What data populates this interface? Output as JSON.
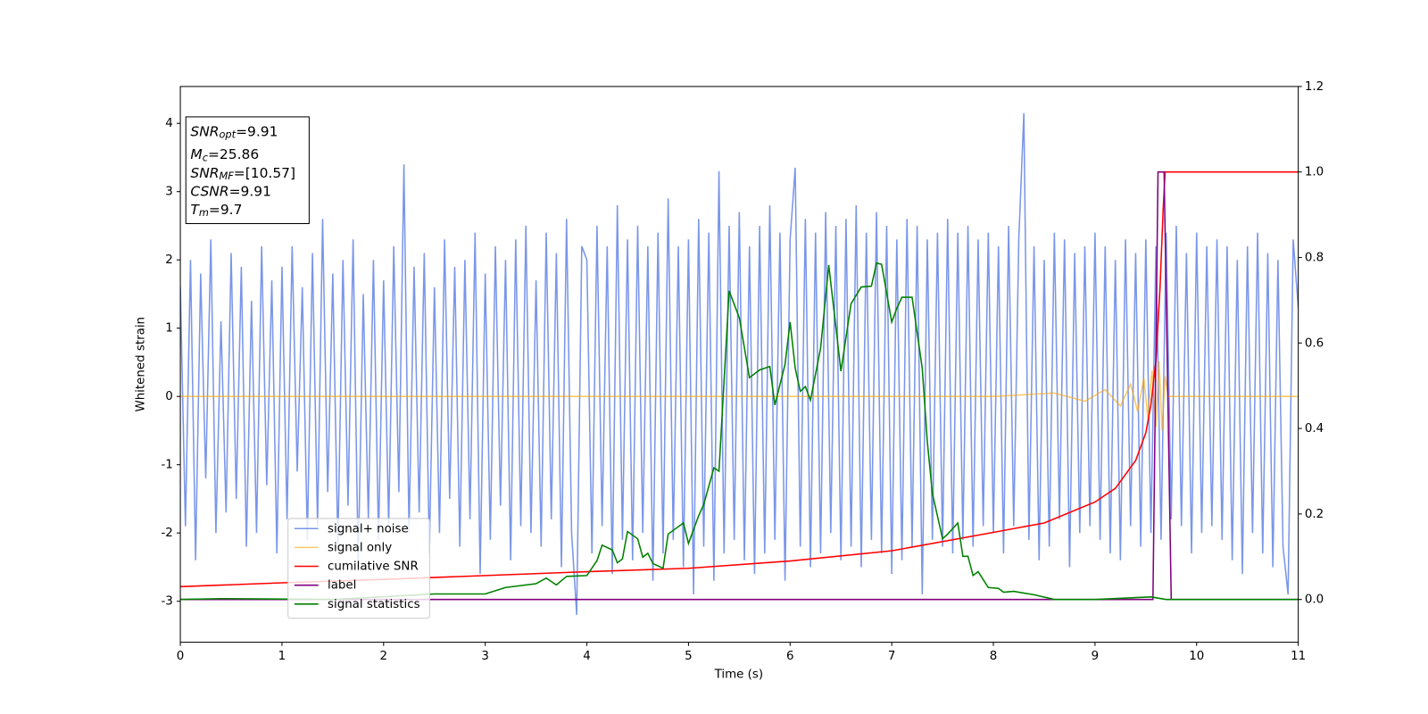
{
  "chart_data": {
    "type": "line",
    "xlabel": "Time (s)",
    "ylabel": "Whitened strain",
    "xlim": [
      0,
      11
    ],
    "xticks": [
      0,
      1,
      2,
      3,
      4,
      5,
      6,
      7,
      8,
      9,
      10,
      11
    ],
    "ylim": [
      -3.6,
      4.54
    ],
    "yticks": [
      -3,
      -2,
      -1,
      0,
      1,
      2,
      3,
      4
    ],
    "y2lim": [
      -0.1,
      1.2
    ],
    "y2ticks": [
      {
        "value": 0,
        "label": "0.0"
      },
      {
        "value": 0.2,
        "label": "0.2"
      },
      {
        "value": 0.4,
        "label": "0.4"
      },
      {
        "value": 0.6,
        "label": "0.6"
      },
      {
        "value": 0.8,
        "label": "0.8"
      },
      {
        "value": 1.0,
        "label": "1.0"
      },
      {
        "value": 1.2,
        "label": "1.2"
      }
    ],
    "legend": "lower left",
    "annotations": [
      {
        "main": "SNR",
        "sub": "opt",
        "rest": "=9.91"
      },
      {
        "main": "M",
        "sub": "c",
        "rest": "=25.86"
      },
      {
        "main": "SNR",
        "sub": "MF",
        "rest": "=[10.57]"
      },
      {
        "main": "CSNR",
        "sub": null,
        "rest": "=9.91"
      },
      {
        "main": "T",
        "sub": "m",
        "rest": "=9.7"
      }
    ],
    "series": [
      {
        "name": "signal+ noise",
        "color": "#4169e1",
        "alpha": 0.7,
        "axis": "y",
        "x": [
          0,
          0.05,
          0.1,
          0.15,
          0.2,
          0.25,
          0.3,
          0.35,
          0.4,
          0.45,
          0.5,
          0.55,
          0.6,
          0.65,
          0.7,
          0.75,
          0.8,
          0.85,
          0.9,
          0.95,
          1,
          1.05,
          1.1,
          1.15,
          1.2,
          1.25,
          1.3,
          1.35,
          1.4,
          1.45,
          1.5,
          1.55,
          1.6,
          1.65,
          1.7,
          1.75,
          1.8,
          1.85,
          1.9,
          1.95,
          2,
          2.05,
          2.1,
          2.15,
          2.2,
          2.25,
          2.3,
          2.35,
          2.4,
          2.45,
          2.5,
          2.55,
          2.6,
          2.65,
          2.7,
          2.75,
          2.8,
          2.85,
          2.9,
          2.95,
          3,
          3.05,
          3.1,
          3.15,
          3.2,
          3.25,
          3.3,
          3.35,
          3.4,
          3.45,
          3.5,
          3.55,
          3.6,
          3.65,
          3.7,
          3.75,
          3.8,
          3.85,
          3.9,
          3.95,
          4,
          4.05,
          4.1,
          4.15,
          4.2,
          4.25,
          4.3,
          4.35,
          4.4,
          4.45,
          4.5,
          4.55,
          4.6,
          4.65,
          4.7,
          4.75,
          4.8,
          4.85,
          4.9,
          4.95,
          5,
          5.05,
          5.1,
          5.15,
          5.2,
          5.25,
          5.3,
          5.35,
          5.4,
          5.45,
          5.5,
          5.55,
          5.6,
          5.65,
          5.7,
          5.75,
          5.8,
          5.85,
          5.9,
          5.95,
          6,
          6.05,
          6.1,
          6.15,
          6.2,
          6.25,
          6.3,
          6.35,
          6.4,
          6.45,
          6.5,
          6.55,
          6.6,
          6.65,
          6.7,
          6.75,
          6.8,
          6.85,
          6.9,
          6.95,
          7,
          7.05,
          7.1,
          7.15,
          7.2,
          7.25,
          7.3,
          7.35,
          7.4,
          7.45,
          7.5,
          7.55,
          7.6,
          7.65,
          7.7,
          7.75,
          7.8,
          7.85,
          7.9,
          7.95,
          8,
          8.05,
          8.1,
          8.15,
          8.2,
          8.25,
          8.3,
          8.35,
          8.4,
          8.45,
          8.5,
          8.55,
          8.6,
          8.65,
          8.7,
          8.75,
          8.8,
          8.85,
          8.9,
          8.95,
          9,
          9.05,
          9.1,
          9.15,
          9.2,
          9.25,
          9.3,
          9.35,
          9.4,
          9.45,
          9.5,
          9.55,
          9.6,
          9.65,
          9.7,
          9.75,
          9.8,
          9.85,
          9.9,
          9.95,
          10,
          10.05,
          10.1,
          10.15,
          10.2,
          10.25,
          10.3,
          10.35,
          10.4,
          10.45,
          10.5,
          10.55,
          10.6,
          10.65,
          10.7,
          10.75,
          10.8,
          10.85,
          10.9,
          10.95,
          11
        ],
        "values": [
          1.6,
          -1.9,
          2.0,
          -2.4,
          1.8,
          -1.2,
          2.3,
          -2.0,
          1.1,
          -1.7,
          2.1,
          -1.5,
          1.9,
          -2.2,
          1.4,
          -2.0,
          2.2,
          -1.3,
          1.7,
          -2.3,
          1.9,
          -1.8,
          2.2,
          -1.1,
          1.6,
          -2.1,
          2.1,
          -1.9,
          2.6,
          -1.4,
          1.8,
          -2.2,
          2.0,
          -1.6,
          2.3,
          -2.5,
          1.5,
          -1.8,
          2.0,
          -2.1,
          1.7,
          -1.9,
          2.2,
          -1.4,
          3.4,
          -2.0,
          1.9,
          -1.7,
          2.1,
          -2.3,
          1.6,
          -2.0,
          2.3,
          -1.5,
          1.9,
          -2.2,
          2.0,
          -1.8,
          2.4,
          -2.6,
          1.8,
          -2.1,
          2.2,
          -1.6,
          2.0,
          -2.4,
          2.3,
          -1.9,
          2.5,
          -2.0,
          1.7,
          -2.2,
          2.4,
          -1.8,
          2.1,
          -2.5,
          2.6,
          -2.0,
          -3.2,
          2.2,
          2.0,
          -2.3,
          2.5,
          -1.9,
          2.2,
          -2.6,
          2.8,
          -2.1,
          2.3,
          -2.4,
          2.5,
          -2.0,
          2.2,
          -2.7,
          2.4,
          -2.3,
          2.9,
          -2.1,
          2.2,
          -2.5,
          2.3,
          -2.9,
          2.6,
          -2.2,
          2.4,
          -2.7,
          3.3,
          -2.3,
          2.5,
          -2.1,
          2.7,
          -2.4,
          2.2,
          -2.6,
          2.5,
          -2.3,
          2.8,
          -2.1,
          2.4,
          -2.7,
          2.3,
          3.35,
          -2.2,
          2.6,
          -2.5,
          2.4,
          -2.3,
          2.7,
          -2.0,
          2.5,
          -2.4,
          2.6,
          -2.2,
          2.8,
          -2.5,
          2.4,
          -2.1,
          2.7,
          -2.3,
          2.5,
          -2.6,
          2.3,
          -2.4,
          2.6,
          -2.2,
          2.5,
          -2.9,
          2.3,
          -2.1,
          2.4,
          -2.2,
          2.6,
          -2.3,
          2.4,
          -2.1,
          2.5,
          -2.2,
          2.3,
          -1.9,
          2.4,
          -2.0,
          2.2,
          -2.3,
          2.5,
          -1.9,
          2.3,
          4.15,
          -2.1,
          2.2,
          -2.4,
          2.0,
          -2.2,
          2.4,
          -1.8,
          2.3,
          -2.5,
          2.1,
          -2.0,
          2.2,
          -1.9,
          2.4,
          -2.1,
          2.2,
          -2.3,
          2.0,
          -2.4,
          2.3,
          -1.9,
          2.1,
          -2.2,
          2.3,
          -2.0,
          2.2,
          -2.1,
          2.4,
          -1.8,
          2.5,
          -1.9,
          2.1,
          -2.3,
          2.4,
          -2.0,
          2.2,
          -1.9,
          2.3,
          -2.1,
          2.2,
          -2.4,
          2.0,
          -2.6,
          2.2,
          -2.0,
          2.4,
          -2.3,
          2.1,
          -2.5,
          2.0,
          -2.2,
          -2.9,
          2.3,
          1.3
        ]
      },
      {
        "name": "signal only",
        "color": "#ffa500",
        "alpha": 0.6,
        "axis": "y",
        "x": [
          0,
          2,
          4,
          6,
          8,
          8.6,
          8.9,
          9.1,
          9.25,
          9.35,
          9.42,
          9.48,
          9.52,
          9.56,
          9.6,
          9.63,
          9.66,
          9.69,
          9.72,
          11
        ],
        "values": [
          0,
          0,
          0,
          0,
          0,
          0.05,
          -0.07,
          0.1,
          -0.14,
          0.18,
          -0.22,
          0.27,
          -0.32,
          0.38,
          -0.45,
          0.52,
          -0.5,
          0.3,
          0,
          0
        ]
      },
      {
        "name": "cumilative SNR",
        "color": "red",
        "alpha": 1,
        "axis": "y2",
        "x": [
          0,
          1,
          2,
          3,
          4,
          5,
          6,
          7,
          8,
          8.5,
          9,
          9.2,
          9.4,
          9.5,
          9.55,
          9.6,
          9.64,
          9.67,
          9.69,
          11
        ],
        "values": [
          0.03,
          0.039,
          0.047,
          0.056,
          0.065,
          0.073,
          0.09,
          0.114,
          0.157,
          0.179,
          0.228,
          0.26,
          0.325,
          0.39,
          0.455,
          0.56,
          0.73,
          0.91,
          1.0,
          1.0
        ]
      },
      {
        "name": "label",
        "color": "purple",
        "alpha": 1,
        "axis": "y2",
        "x": [
          0,
          9.57,
          9.62,
          9.68,
          9.75,
          11
        ],
        "values": [
          0,
          0,
          1,
          1,
          0,
          0
        ]
      },
      {
        "name": "signal statistics",
        "color": "green",
        "alpha": 1,
        "axis": "y2",
        "x": [
          0,
          0.4,
          1.5,
          2.5,
          3,
          3.2,
          3.5,
          3.6,
          3.7,
          3.8,
          4.0,
          4.1,
          4.15,
          4.25,
          4.3,
          4.35,
          4.4,
          4.5,
          4.55,
          4.6,
          4.65,
          4.75,
          4.8,
          4.95,
          5.0,
          5.1,
          5.15,
          5.25,
          5.3,
          5.4,
          5.5,
          5.6,
          5.7,
          5.8,
          5.85,
          5.95,
          6.0,
          6.05,
          6.1,
          6.15,
          6.2,
          6.3,
          6.38,
          6.45,
          6.5,
          6.6,
          6.7,
          6.8,
          6.85,
          6.9,
          7.0,
          7.05,
          7.1,
          7.2,
          7.3,
          7.35,
          7.4,
          7.5,
          7.55,
          7.65,
          7.7,
          7.75,
          7.8,
          7.85,
          7.95,
          8.05,
          8.1,
          8.2,
          8.4,
          8.6,
          9,
          9.55,
          9.7,
          11
        ],
        "values": [
          0,
          0.002,
          0,
          0.013,
          0.013,
          0.028,
          0.037,
          0.05,
          0.034,
          0.054,
          0.056,
          0.091,
          0.127,
          0.116,
          0.086,
          0.095,
          0.159,
          0.142,
          0.099,
          0.108,
          0.084,
          0.073,
          0.153,
          0.179,
          0.131,
          0.196,
          0.222,
          0.308,
          0.3,
          0.722,
          0.659,
          0.519,
          0.537,
          0.545,
          0.455,
          0.55,
          0.649,
          0.541,
          0.487,
          0.498,
          0.466,
          0.588,
          0.782,
          0.638,
          0.534,
          0.692,
          0.731,
          0.733,
          0.787,
          0.784,
          0.649,
          0.681,
          0.707,
          0.707,
          0.541,
          0.369,
          0.248,
          0.142,
          0.153,
          0.179,
          0.101,
          0.101,
          0.056,
          0.065,
          0.028,
          0.026,
          0.017,
          0.019,
          0.011,
          0,
          0,
          0.006,
          0,
          0
        ]
      }
    ]
  }
}
